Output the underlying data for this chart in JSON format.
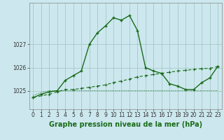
{
  "title": "Graphe pression niveau de la mer (hPa)",
  "bg_color": "#cce8ee",
  "grid_color": "#aacccc",
  "line_color": "#1a6b1a",
  "xlim": [
    -0.5,
    23.5
  ],
  "ylim": [
    1024.2,
    1028.8
  ],
  "yticks": [
    1025,
    1026,
    1027
  ],
  "xticks": [
    0,
    1,
    2,
    3,
    4,
    5,
    6,
    7,
    8,
    9,
    10,
    11,
    12,
    13,
    14,
    15,
    16,
    17,
    18,
    19,
    20,
    21,
    22,
    23
  ],
  "series1_x": [
    0,
    1,
    2,
    3,
    4,
    5,
    6,
    7,
    8,
    9,
    10,
    11,
    12,
    13,
    14,
    15,
    16,
    17,
    18,
    19,
    20,
    21,
    22,
    23
  ],
  "series1_y": [
    1024.7,
    1024.85,
    1024.95,
    1025.0,
    1025.45,
    1025.65,
    1025.85,
    1027.0,
    1027.5,
    1027.8,
    1028.15,
    1028.05,
    1028.25,
    1027.6,
    1026.0,
    1025.85,
    1025.75,
    1025.3,
    1025.2,
    1025.05,
    1025.05,
    1025.35,
    1025.55,
    1026.05
  ],
  "series2_x": [
    0,
    2,
    3,
    4,
    5,
    6,
    7,
    8,
    9,
    10,
    11,
    12,
    13,
    14,
    15,
    16,
    17,
    18,
    19,
    20,
    21,
    22,
    23
  ],
  "series2_y": [
    1024.7,
    1024.85,
    1024.95,
    1025.05,
    1025.05,
    1025.1,
    1025.15,
    1025.2,
    1025.25,
    1025.35,
    1025.42,
    1025.5,
    1025.6,
    1025.65,
    1025.7,
    1025.75,
    1025.8,
    1025.85,
    1025.88,
    1025.92,
    1025.95,
    1025.97,
    1026.05
  ],
  "series3_x": [
    0,
    1,
    2,
    3,
    4,
    5,
    6,
    7,
    8,
    9,
    10,
    11,
    12,
    13,
    14,
    15,
    16,
    17,
    18,
    19,
    20,
    21,
    22,
    23
  ],
  "series3_y": [
    1024.8,
    1024.92,
    1025.0,
    1025.0,
    1025.0,
    1025.0,
    1025.0,
    1025.0,
    1025.0,
    1025.0,
    1025.0,
    1025.0,
    1025.0,
    1025.0,
    1025.0,
    1025.0,
    1025.0,
    1025.0,
    1025.0,
    1025.0,
    1025.0,
    1025.0,
    1025.0,
    1025.0
  ],
  "xlabel_fontsize": 7,
  "tick_fontsize": 5.5
}
